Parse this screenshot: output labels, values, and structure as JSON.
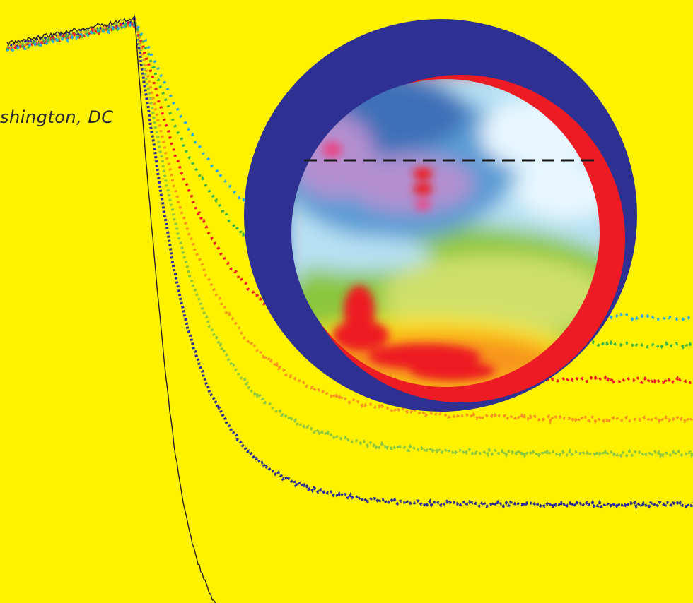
{
  "caption": "shington, DC",
  "colors": {
    "background": "#fff200",
    "disc_outer": "#2e3192",
    "disc_crescent": "#ed1c24",
    "dashed_line": "#1a1a1a",
    "series": [
      "#231f20",
      "#2e3192",
      "#8dc63f",
      "#f7941d",
      "#ed1c24",
      "#39b54a",
      "#27aae1"
    ]
  },
  "chart_data": {
    "type": "line",
    "title": "",
    "xlabel": "",
    "ylabel": "",
    "series_count": 7,
    "series_styles": [
      "solid",
      "dashed",
      "dashed",
      "dashed",
      "dashed",
      "dashed",
      "dashed"
    ],
    "relative_decay_rates": [
      1.0,
      0.62,
      0.5,
      0.42,
      0.33,
      0.25,
      0.19
    ]
  },
  "heatmap_palette": [
    "#e8f7ff",
    "#b7e1f3",
    "#5a9bd4",
    "#3d6fb8",
    "#b48fd0",
    "#e84a8a",
    "#8cc63e",
    "#cfe06b",
    "#ffe600",
    "#f7941d",
    "#ed1c24"
  ]
}
